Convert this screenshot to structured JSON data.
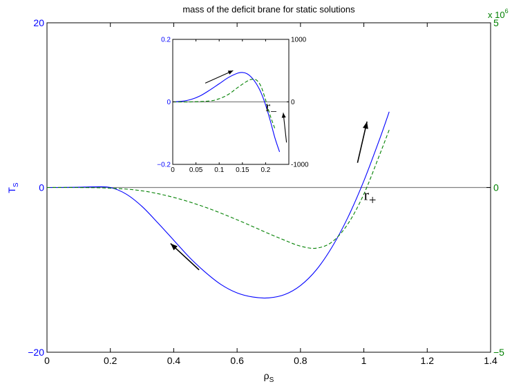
{
  "chart_data": [
    {
      "type": "line",
      "title": "mass of the deficit brane for static solutions",
      "xlabel": "ρ",
      "xlabel_sub": "S",
      "ylabel": "T",
      "ylabel_sub": "S",
      "xlim": [
        0,
        1.4
      ],
      "ylim_left": [
        -20,
        20
      ],
      "ylim_right": [
        -5,
        5
      ],
      "right_axis_multiplier": "x 10",
      "right_axis_exponent": "6",
      "x_ticks": [
        0,
        0.2,
        0.4,
        0.6,
        0.8,
        1,
        1.2,
        1.4
      ],
      "x_tick_labels": [
        "0",
        "0.2",
        "0.4",
        "0.6",
        "0.8",
        "1",
        "1.2",
        "1.4"
      ],
      "y_ticks_left": [
        -20,
        0,
        20
      ],
      "y_tick_labels_left": [
        "−20",
        "0",
        "20"
      ],
      "y_ticks_right": [
        -5,
        0,
        5
      ],
      "y_tick_labels_right": [
        "−5",
        "0",
        "5"
      ],
      "grid": false,
      "legend": "none",
      "series": [
        {
          "axis": "left",
          "style": "solid",
          "color": "#0000ff",
          "x": [
            0,
            0.05,
            0.1,
            0.15,
            0.2,
            0.25,
            0.3,
            0.35,
            0.4,
            0.45,
            0.5,
            0.55,
            0.6,
            0.65,
            0.7,
            0.75,
            0.8,
            0.85,
            0.9,
            0.95,
            1.0,
            1.05,
            1.08
          ],
          "y": [
            0,
            0.005,
            0.04,
            0.08,
            0,
            -0.8,
            -2.3,
            -4.3,
            -6.4,
            -8.5,
            -10.3,
            -11.8,
            -12.8,
            -13.3,
            -13.4,
            -13.0,
            -11.9,
            -10.0,
            -7.2,
            -3.6,
            0.8,
            5.9,
            9.2
          ]
        },
        {
          "axis": "right",
          "style": "dashed",
          "color": "#008000",
          "x": [
            0,
            0.1,
            0.2,
            0.3,
            0.4,
            0.5,
            0.6,
            0.7,
            0.75,
            0.8,
            0.85,
            0.9,
            0.95,
            1.0,
            1.05,
            1.08
          ],
          "y": [
            0,
            0,
            -0.02,
            -0.1,
            -0.3,
            -0.6,
            -0.98,
            -1.4,
            -1.6,
            -1.78,
            -1.84,
            -1.65,
            -1.1,
            -0.2,
            1.0,
            1.75
          ]
        }
      ],
      "annotations": [
        {
          "text": "r",
          "sub": "+",
          "x": 1.0,
          "y": -1.5
        }
      ],
      "arrows": [
        {
          "from": [
            0.48,
            -10.0
          ],
          "to": [
            0.39,
            -6.8
          ]
        },
        {
          "from": [
            0.98,
            3.0
          ],
          "to": [
            1.01,
            8.0
          ]
        }
      ]
    },
    {
      "type": "line",
      "role": "inset",
      "xlim": [
        0,
        0.25
      ],
      "ylim_left": [
        -0.2,
        0.2
      ],
      "ylim_right": [
        -1000,
        1000
      ],
      "x_ticks": [
        0,
        0.05,
        0.1,
        0.15,
        0.2
      ],
      "x_tick_labels": [
        "0",
        "0.05",
        "0.1",
        "0.15",
        "0.2"
      ],
      "y_ticks_left": [
        -0.2,
        0,
        0.2
      ],
      "y_tick_labels_left": [
        "−0.2",
        "0",
        "0.2"
      ],
      "y_ticks_right": [
        -1000,
        0,
        1000
      ],
      "y_tick_labels_right": [
        "-1000",
        "0",
        "1000"
      ],
      "series": [
        {
          "axis": "left",
          "style": "solid",
          "color": "#0000ff",
          "x": [
            0,
            0.02,
            0.04,
            0.06,
            0.08,
            0.1,
            0.12,
            0.14,
            0.15,
            0.16,
            0.17,
            0.18,
            0.19,
            0.2,
            0.21,
            0.22,
            0.23
          ],
          "y": [
            0,
            0.002,
            0.008,
            0.02,
            0.038,
            0.058,
            0.078,
            0.092,
            0.094,
            0.09,
            0.078,
            0.058,
            0.03,
            -0.01,
            -0.06,
            -0.115,
            -0.16
          ]
        },
        {
          "axis": "right",
          "style": "dashed",
          "color": "#008000",
          "x": [
            0,
            0.04,
            0.08,
            0.1,
            0.12,
            0.14,
            0.16,
            0.17,
            0.18,
            0.19,
            0.2,
            0.21,
            0.22
          ],
          "y": [
            0,
            0,
            15,
            50,
            120,
            230,
            330,
            360,
            350,
            250,
            30,
            -220,
            -430
          ]
        }
      ],
      "annotations": [
        {
          "text": "r",
          "sub": "−",
          "x": 0.2,
          "y": -0.03
        }
      ],
      "arrows": [
        {
          "from": [
            0.07,
            0.06
          ],
          "to": [
            0.13,
            0.1
          ]
        },
        {
          "from": [
            0.245,
            -0.13
          ],
          "to": [
            0.238,
            -0.035
          ]
        }
      ]
    }
  ]
}
